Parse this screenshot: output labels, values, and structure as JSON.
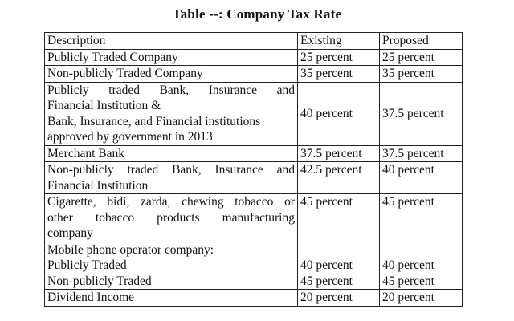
{
  "title": "Table --: Company Tax Rate",
  "header": {
    "description": "Description",
    "existing": "Existing",
    "proposed": "Proposed"
  },
  "rows": [
    {
      "desc": "Publicly Traded Company",
      "existing": "25 percent",
      "proposed": "25 percent"
    },
    {
      "desc": "Non-publicly Traded Company",
      "existing": "35 percent",
      "proposed": "35 percent"
    },
    {
      "desc_lines": [
        "Publicly traded Bank, Insurance and",
        "Financial Institution &",
        "Bank, Insurance, and Financial institutions",
        "approved by government in 2013"
      ],
      "existing": "40 percent",
      "proposed": "37.5 percent"
    },
    {
      "desc": "Merchant Bank",
      "existing": "37.5 percent",
      "proposed": "37.5 percent"
    },
    {
      "desc_lines": [
        "Non-publicly traded Bank, Insurance and",
        "Financial Institution"
      ],
      "existing": "42.5 percent",
      "proposed": "40 percent"
    },
    {
      "desc_lines": [
        "Cigarette, bidi, zarda, chewing tobacco or",
        "other tobacco products manufacturing",
        "company"
      ],
      "existing": "45 percent",
      "proposed": "45 percent"
    },
    {
      "desc_lines": [
        "Mobile phone operator company:",
        "Publicly Traded",
        "Non-publicly Traded"
      ],
      "existing": "40 percent",
      "existing_2": "45 percent",
      "proposed": "40 percent",
      "proposed_2": "45 percent"
    },
    {
      "desc": "Dividend Income",
      "existing": "20 percent",
      "proposed": "20 percent"
    }
  ]
}
